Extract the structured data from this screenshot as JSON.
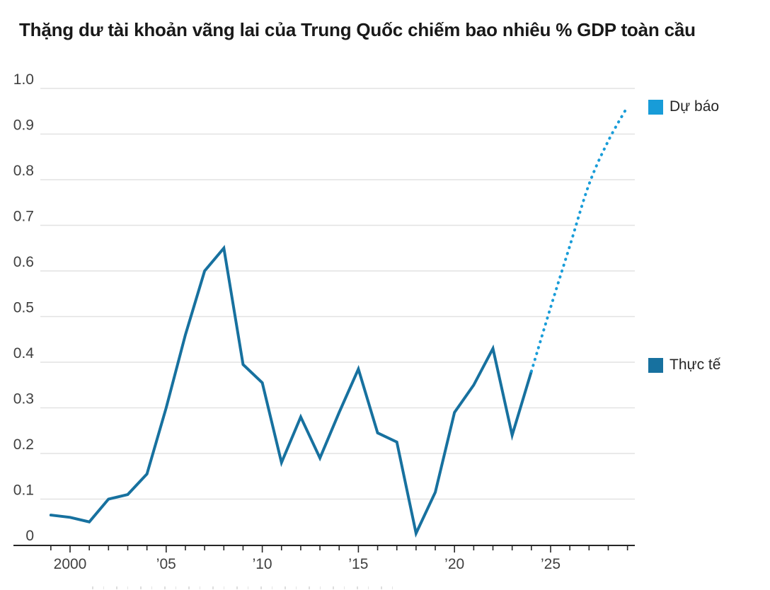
{
  "title": "Thặng dư tài khoản vãng lai của Trung Quốc chiếm bao nhiêu % GDP toàn cầu",
  "legend": {
    "forecast": {
      "label": "Dự báo",
      "color": "#189cd8"
    },
    "actual": {
      "label": "Thực tế",
      "color": "#17719f"
    }
  },
  "colors": {
    "axis": "#262626",
    "tick_label": "#404040",
    "gridline": "#e2e2e2",
    "background": "#ffffff"
  },
  "chart_data": {
    "type": "line",
    "title": "Thặng dư tài khoản vãng lai của Trung Quốc chiếm bao nhiêu % GDP toàn cầu",
    "xlabel": "",
    "ylabel": "",
    "ylim": [
      0,
      1.0
    ],
    "xlim": [
      1999,
      2029
    ],
    "grid": "horizontal",
    "legend_position": "right",
    "y_ticks": [
      {
        "value": 1.0,
        "label": "1.0"
      },
      {
        "value": 0.9,
        "label": "0.9"
      },
      {
        "value": 0.8,
        "label": "0.8"
      },
      {
        "value": 0.7,
        "label": "0.7"
      },
      {
        "value": 0.6,
        "label": "0.6"
      },
      {
        "value": 0.5,
        "label": "0.5"
      },
      {
        "value": 0.4,
        "label": "0.4"
      },
      {
        "value": 0.3,
        "label": "0.3"
      },
      {
        "value": 0.2,
        "label": "0.2"
      },
      {
        "value": 0.1,
        "label": "0.1"
      },
      {
        "value": 0,
        "label": "0"
      }
    ],
    "x_tick_labels": [
      {
        "year": 2000,
        "label": "2000"
      },
      {
        "year": 2005,
        "label": "’05"
      },
      {
        "year": 2010,
        "label": "’10"
      },
      {
        "year": 2015,
        "label": "’15"
      },
      {
        "year": 2020,
        "label": "’20"
      },
      {
        "year": 2025,
        "label": "’25"
      }
    ],
    "x_minor_ticks_every_year_from": 1999,
    "x_minor_ticks_every_year_to": 2029,
    "series": [
      {
        "name": "Thực tế",
        "style": "solid",
        "color": "#17719f",
        "x": [
          1999,
          2000,
          2001,
          2002,
          2003,
          2004,
          2005,
          2006,
          2007,
          2008,
          2009,
          2010,
          2011,
          2012,
          2013,
          2014,
          2015,
          2016,
          2017,
          2018,
          2019,
          2020,
          2021,
          2022,
          2023,
          2024
        ],
        "values": [
          0.065,
          0.06,
          0.05,
          0.1,
          0.11,
          0.155,
          0.3,
          0.46,
          0.6,
          0.65,
          0.395,
          0.355,
          0.18,
          0.28,
          0.19,
          0.29,
          0.385,
          0.245,
          0.225,
          0.025,
          0.115,
          0.29,
          0.35,
          0.43,
          0.24,
          0.38
        ]
      },
      {
        "name": "Dự báo",
        "style": "dotted",
        "color": "#189cd8",
        "x": [
          2024,
          2025,
          2026,
          2027,
          2028,
          2029
        ],
        "values": [
          0.38,
          0.52,
          0.655,
          0.79,
          0.885,
          0.96
        ]
      }
    ]
  }
}
